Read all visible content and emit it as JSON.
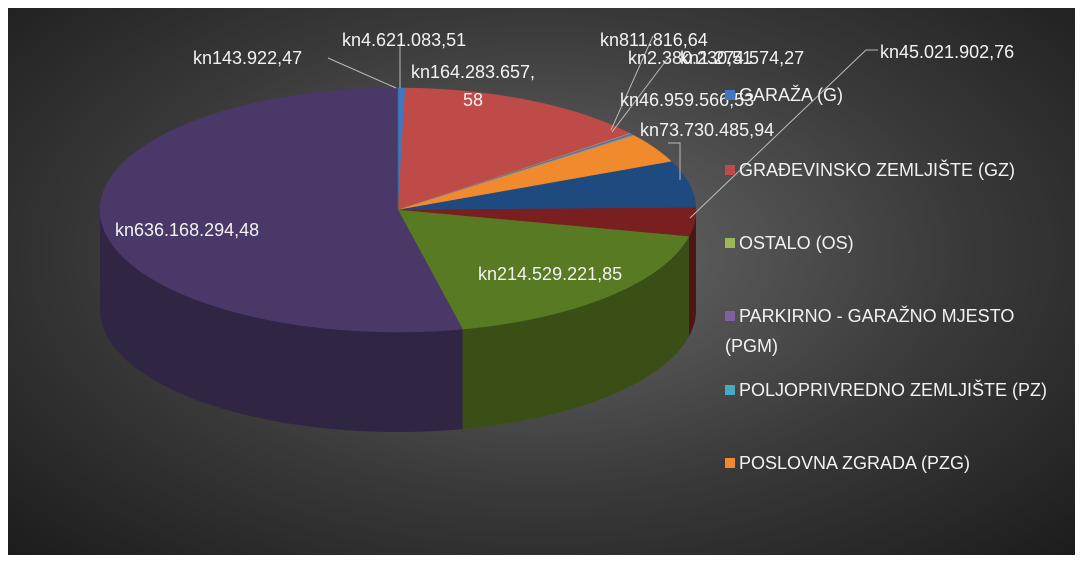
{
  "chart_data": {
    "type": "pie3d",
    "categories": [
      "GARAŽA (G)",
      "GRAĐEVINSKO ZEMLJIŠTE (GZ)",
      "OSTALO (OS)",
      "PARKIRNO - GARAŽNO MJESTO (PGM)",
      "POLJOPRIVREDNO ZEMLJIŠTE (PZ)",
      "POSLOVNA ZGRADA (PZG)",
      null,
      null,
      null,
      null,
      null
    ],
    "values": [
      4621083.51,
      164283657.58,
      811816.64,
      2380230.51,
      1274574.27,
      46959566.53,
      73730485.94,
      45021902.76,
      214529221.85,
      636168294.48,
      143922.47
    ],
    "value_labels": [
      "kn4.621.083,51",
      "kn164.283.657,58",
      "kn811.816,64",
      "kn2.380.230,51",
      "kn1.274.574,27",
      "kn46.959.566,53",
      "kn73.730.485,94",
      "kn45.021.902,76",
      "kn214.529.221,85",
      "kn636.168.294,48",
      "kn143.922,47"
    ],
    "colors": [
      "#3f78c0",
      "#be4b48",
      "#98b954",
      "#7d60a0",
      "#46aac5",
      "#f08a2c",
      "#1f4a80",
      "#7a1f1f",
      "#587a22",
      "#4a3968",
      "#276a7c"
    ],
    "legend": "right"
  }
}
